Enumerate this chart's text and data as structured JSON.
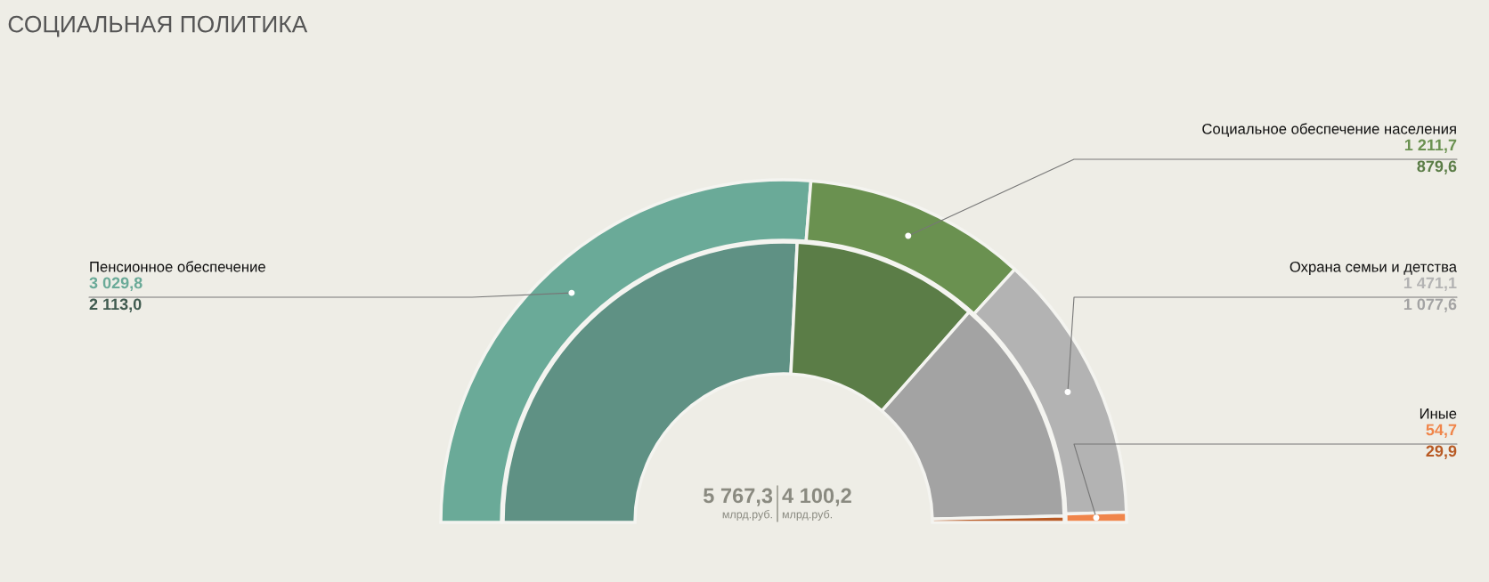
{
  "chart_data": {
    "type": "donut",
    "title": "СОЦИАЛЬНАЯ ПОЛИТИКА",
    "categories": [
      "Пенсионное обеспечение",
      "Социальное обеспечение населения",
      "Охрана семьи и детства",
      "Иные"
    ],
    "series": [
      {
        "values": [
          3029.8,
          1211.7,
          1471.1,
          54.7
        ],
        "colors": [
          "#6aaa98",
          "#6a9150",
          "#b3b3b3",
          "#f0854a"
        ],
        "value_labels": [
          "3 029,8",
          "1 211,7",
          "1 471,1",
          "54,7"
        ]
      },
      {
        "values": [
          2113.0,
          879.6,
          1077.6,
          29.9
        ],
        "colors": [
          "#5f9184",
          "#5b7d47",
          "#a3a3a3",
          "#b85a24"
        ],
        "value_labels": [
          "2 113,0",
          "879,6",
          "1 077,6",
          "29,9"
        ]
      }
    ],
    "annotations": [
      "5 767,3",
      "млрд.руб.",
      "4 100,2",
      "млрд.руб."
    ]
  }
}
